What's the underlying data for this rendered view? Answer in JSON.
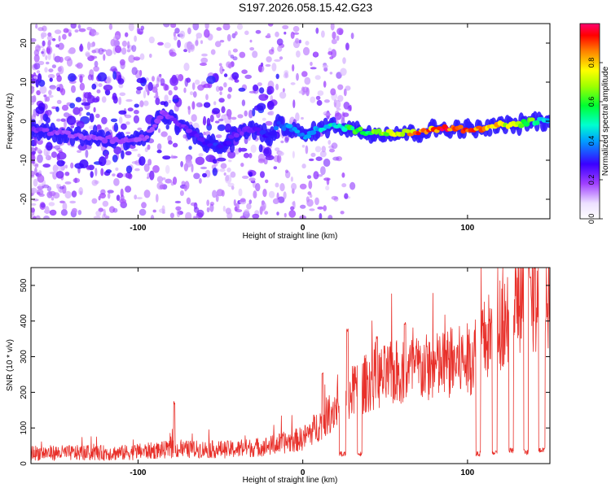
{
  "title": "S197.2026.058.15.42.G23",
  "colors": {
    "snr_line": "#e8302a",
    "frame": "#000000",
    "ridge_low": "#6a00ff",
    "ridge_high": "#ff0000"
  },
  "chart_data": [
    {
      "type": "heatmap",
      "name": "spectrogram",
      "xlabel": "Height of straight line (km)",
      "ylabel": "Frequency (Hz)",
      "xlim": [
        -165,
        150
      ],
      "ylim": [
        -25,
        25
      ],
      "xticks": [
        -100,
        0,
        100
      ],
      "yticks": [
        -20,
        -10,
        0,
        10,
        20
      ],
      "colorbar": {
        "label": "Normalized spectral amplitude",
        "range": [
          0.0,
          1.0
        ],
        "ticks": [
          "0.0",
          "0.2",
          "0.4",
          "0.6",
          "0.8"
        ],
        "tick_values": [
          0.0,
          0.2,
          0.4,
          0.6,
          0.8
        ]
      },
      "ridge": {
        "x": [
          -165,
          -150,
          -130,
          -110,
          -95,
          -85,
          -75,
          -60,
          -50,
          -40,
          -30,
          -20,
          -15,
          -5,
          0,
          10,
          20,
          30,
          40,
          50,
          60,
          70,
          80,
          90,
          100,
          110,
          120,
          130,
          140,
          145
        ],
        "freq": [
          -2,
          -3,
          -4,
          -5,
          -4,
          2,
          -1,
          -5,
          -7,
          -3,
          -2,
          -4,
          -1,
          -2,
          -4,
          -2,
          -1,
          -2,
          -3,
          -3,
          -3,
          -3,
          -2,
          -2,
          -2,
          -2,
          -1,
          -1,
          0,
          0
        ],
        "amplitude": [
          0.15,
          0.12,
          0.1,
          0.12,
          0.1,
          0.12,
          0.15,
          0.2,
          0.25,
          0.15,
          0.2,
          0.25,
          0.3,
          0.35,
          0.35,
          0.4,
          0.45,
          0.55,
          0.6,
          0.65,
          0.75,
          0.9,
          0.95,
          1.0,
          0.95,
          0.9,
          0.8,
          0.7,
          0.6,
          0.4
        ]
      }
    },
    {
      "type": "line",
      "name": "snr",
      "xlabel": "Height of straight line (km)",
      "ylabel": "SNR (10 * v/v)",
      "xlim": [
        -165,
        150
      ],
      "ylim": [
        0,
        550
      ],
      "xticks": [
        -100,
        0,
        100
      ],
      "yticks": [
        0,
        100,
        200,
        300,
        400,
        500
      ],
      "trend": {
        "x": [
          -165,
          -140,
          -110,
          -80,
          -60,
          -40,
          -20,
          0,
          10,
          20,
          30,
          40,
          60,
          80,
          100,
          110,
          120,
          130,
          140,
          150
        ],
        "y": [
          30,
          30,
          30,
          40,
          40,
          40,
          50,
          70,
          110,
          160,
          200,
          230,
          260,
          270,
          290,
          340,
          400,
          440,
          460,
          470
        ]
      },
      "spikes": [
        {
          "x": -78,
          "y": 175
        },
        {
          "x": 12,
          "y": 260
        },
        {
          "x": 27,
          "y": 380
        },
        {
          "x": 45,
          "y": 360
        },
        {
          "x": 62,
          "y": 400
        },
        {
          "x": 138,
          "y": 530
        }
      ],
      "dropouts": [
        {
          "from": 22,
          "to": 26,
          "y": 20
        },
        {
          "from": 33,
          "to": 36,
          "y": 20
        },
        {
          "from": 105,
          "to": 108,
          "y": 20
        },
        {
          "from": 115,
          "to": 118,
          "y": 25
        },
        {
          "from": 125,
          "to": 128,
          "y": 30
        },
        {
          "from": 134,
          "to": 137,
          "y": 25
        },
        {
          "from": 143,
          "to": 147,
          "y": 30
        }
      ]
    }
  ]
}
